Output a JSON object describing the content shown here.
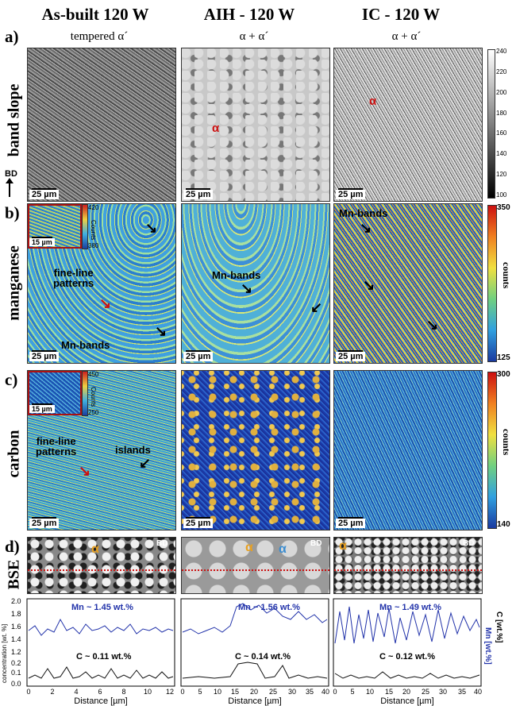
{
  "columns": [
    {
      "title": "As-built 120 W",
      "phase": "tempered α´"
    },
    {
      "title": "AIH - 120 W",
      "phase": "α + α´"
    },
    {
      "title": "IC - 120 W",
      "phase": "α + α´"
    }
  ],
  "panels": {
    "a": {
      "letter": "a)",
      "row_label": "band slope",
      "bd_label": "BD",
      "scale": "25 µm",
      "colorbar_ticks": [
        "240",
        "220",
        "200",
        "180",
        "160",
        "140",
        "120",
        "100"
      ],
      "annotations": [
        "α",
        "α"
      ]
    },
    "b": {
      "letter": "b)",
      "row_label": "manganese",
      "scale": "25 µm",
      "inset_scale": "15 µm",
      "inset_ticks": [
        "420",
        "380"
      ],
      "inset_label": "Counts",
      "colorbar_max": "350",
      "colorbar_min": "125",
      "colorbar_label": "counts",
      "annotations": {
        "fine": "fine-line\npatterns",
        "mn_bands_1": "Mn-bands",
        "mn_bands_2": "Mn-bands",
        "mn_bands_3": "Mn-bands"
      }
    },
    "c": {
      "letter": "c)",
      "row_label": "carbon",
      "scale": "25 µm",
      "inset_scale": "15 µm",
      "inset_ticks": [
        "450",
        "250"
      ],
      "inset_label": "Counts",
      "colorbar_max": "300",
      "colorbar_min": "140",
      "colorbar_label": "counts",
      "annotations": {
        "fine": "fine-line\npatterns",
        "islands": "islands"
      }
    },
    "d": {
      "letter": "d)",
      "row_label": "BSE",
      "bd_label": "BD",
      "alpha": "α",
      "y_axis_label": "concentration [wt. %]",
      "right_axis_c": "C [wt.%]",
      "right_axis_mn": "Mn [wt.%]",
      "x_axis_label": "Distance [µm]",
      "y_ticks": [
        "2.0",
        "1.8",
        "1.6",
        "1.4",
        "1.2",
        "0.2",
        "0.1",
        "0.0"
      ],
      "mn_labels": [
        "Mn ~ 1.45 wt.%",
        "Mn ~ 1.56 wt.%",
        "Mn ~ 1.49 wt.%"
      ],
      "c_labels": [
        "C ~ 0.11 wt.%",
        "C ~ 0.14 wt.%",
        "C ~ 0.12 wt.%"
      ],
      "x_ticks": [
        [
          "0",
          "2",
          "4",
          "6",
          "8",
          "10",
          "12"
        ],
        [
          "0",
          "5",
          "10",
          "15",
          "20",
          "25",
          "30",
          "35",
          "40"
        ],
        [
          "0",
          "5",
          "10",
          "15",
          "20",
          "25",
          "30",
          "35",
          "40"
        ]
      ]
    }
  },
  "colors": {
    "mn_line": "#2233aa",
    "c_line": "#111111",
    "annotation_red": "#cc1111",
    "alpha_orange": "#e8a020",
    "alpha_blue": "#3a8cd0"
  }
}
